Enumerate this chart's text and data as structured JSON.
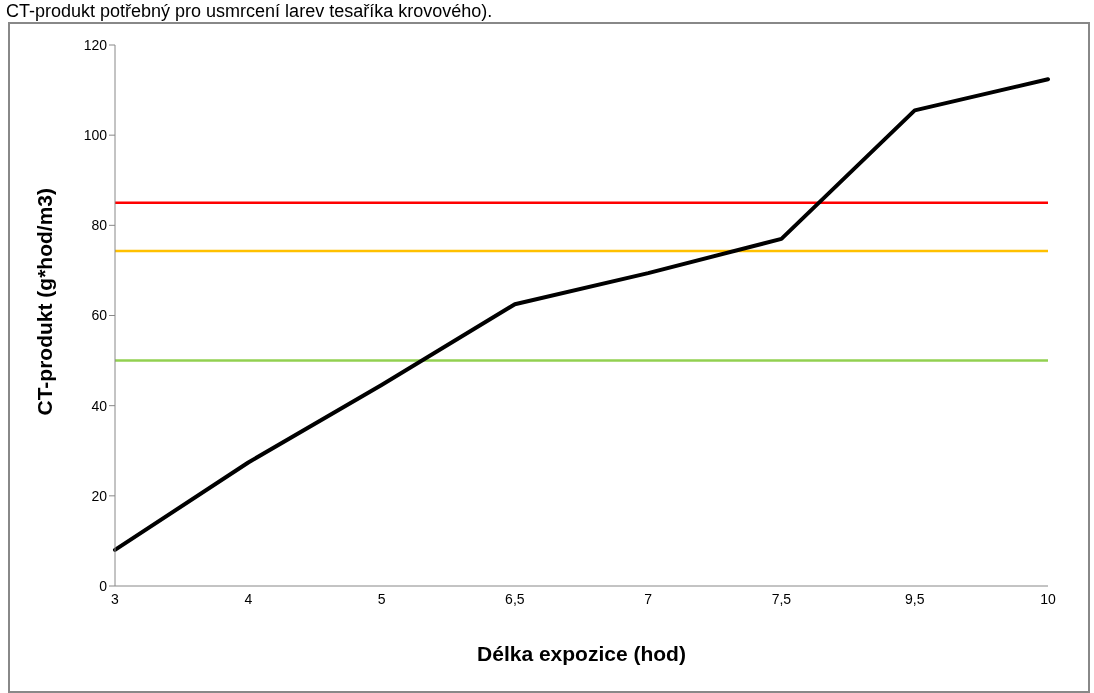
{
  "chart_data": {
    "type": "line",
    "annotations": [
      "CT-produkt potřebný pro usmrcení larev tesaříka krovového)."
    ],
    "xlabel": "Délka expozice (hod)",
    "ylabel": "CT-produkt  (g*hod/m3)",
    "categories": [
      "3",
      "4",
      "5",
      "6,5",
      "7",
      "7,5",
      "9,5",
      "10"
    ],
    "series": [
      {
        "color": "#000000",
        "values": [
          8,
          27.4,
          44.6,
          62.5,
          69.4,
          77,
          105.5,
          112.4
        ]
      }
    ],
    "ylim": [
      0,
      120
    ],
    "yticks": [
      0,
      20,
      40,
      60,
      80,
      100,
      120
    ],
    "grid": false,
    "legend": false,
    "marker": "none",
    "line_style": "solid",
    "ref_lines": [
      {
        "axis": "y",
        "value": 85,
        "color": "#ff0000"
      },
      {
        "axis": "y",
        "value": 74.3,
        "color": "#ffc000"
      },
      {
        "axis": "y",
        "value": 50,
        "color": "#92d050"
      }
    ]
  }
}
